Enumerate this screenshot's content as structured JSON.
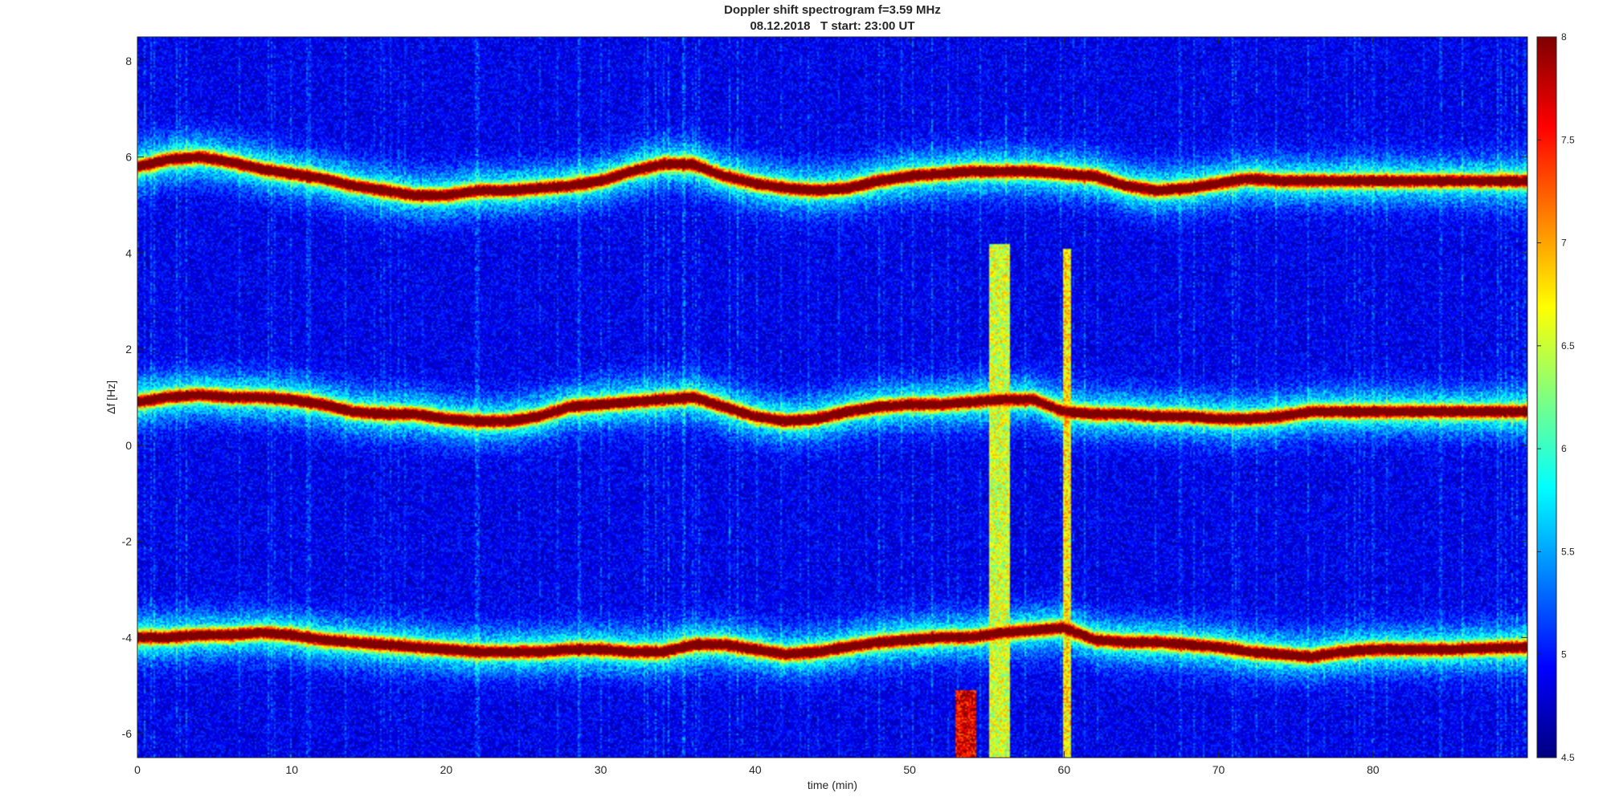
{
  "chart_data": {
    "type": "heatmap",
    "title": "Doppler shift spectrogram f=3.59 MHz",
    "subtitle": "08.12.2018   T start: 23:00 UT",
    "xlabel": "time (min)",
    "ylabel": "Δf [Hz]",
    "xlim": [
      0,
      90
    ],
    "ylim": [
      -6.5,
      8.5
    ],
    "x_ticks": [
      "0",
      "10",
      "20",
      "30",
      "40",
      "50",
      "60",
      "70",
      "80"
    ],
    "y_ticks": [
      "-6",
      "-4",
      "-2",
      "0",
      "2",
      "4",
      "6",
      "8"
    ],
    "colormap": "jet",
    "colorbar": {
      "range": [
        4.5,
        8
      ],
      "ticks": [
        "4.5",
        "5",
        "5.5",
        "6",
        "6.5",
        "7",
        "7.5",
        "8"
      ]
    },
    "grid": false,
    "background_level": 4.6,
    "traces": [
      {
        "t": [
          0,
          2,
          4,
          6,
          8,
          10,
          12,
          14,
          16,
          18,
          20,
          22,
          24,
          26,
          28,
          30,
          32,
          34,
          36,
          38,
          40,
          42,
          44,
          46,
          48,
          50,
          52,
          54,
          56,
          58,
          60,
          62,
          64,
          66,
          68,
          70,
          72,
          74,
          76,
          78,
          80,
          85,
          90
        ],
        "df": [
          5.8,
          5.95,
          6.0,
          5.9,
          5.75,
          5.65,
          5.55,
          5.4,
          5.3,
          5.2,
          5.2,
          5.3,
          5.3,
          5.35,
          5.4,
          5.5,
          5.7,
          5.85,
          5.85,
          5.6,
          5.45,
          5.35,
          5.3,
          5.35,
          5.5,
          5.6,
          5.65,
          5.7,
          5.7,
          5.7,
          5.65,
          5.6,
          5.4,
          5.3,
          5.35,
          5.45,
          5.55,
          5.5,
          5.5,
          5.5,
          5.5,
          5.5,
          5.5
        ]
      },
      {
        "t": [
          0,
          2,
          4,
          6,
          8,
          10,
          12,
          14,
          16,
          18,
          20,
          22,
          24,
          26,
          28,
          30,
          32,
          34,
          36,
          38,
          40,
          42,
          44,
          46,
          48,
          50,
          52,
          54,
          56,
          58,
          60,
          62,
          64,
          66,
          68,
          70,
          72,
          74,
          76,
          78,
          80,
          85,
          90
        ],
        "df": [
          0.9,
          1.0,
          1.05,
          1.0,
          1.0,
          0.95,
          0.85,
          0.7,
          0.65,
          0.65,
          0.55,
          0.5,
          0.5,
          0.6,
          0.8,
          0.85,
          0.9,
          0.95,
          1.0,
          0.8,
          0.6,
          0.5,
          0.55,
          0.7,
          0.8,
          0.85,
          0.85,
          0.9,
          0.95,
          0.95,
          0.7,
          0.65,
          0.65,
          0.6,
          0.6,
          0.55,
          0.55,
          0.6,
          0.7,
          0.7,
          0.7,
          0.7,
          0.7
        ]
      },
      {
        "t": [
          0,
          2,
          4,
          6,
          8,
          10,
          12,
          14,
          16,
          18,
          20,
          22,
          24,
          26,
          28,
          30,
          32,
          34,
          36,
          38,
          40,
          42,
          44,
          46,
          48,
          50,
          52,
          54,
          56,
          58,
          60,
          62,
          64,
          66,
          68,
          70,
          72,
          74,
          76,
          78,
          80,
          85,
          90
        ],
        "df": [
          -4.0,
          -4.0,
          -3.95,
          -3.95,
          -3.9,
          -3.95,
          -4.05,
          -4.1,
          -4.15,
          -4.2,
          -4.25,
          -4.3,
          -4.3,
          -4.3,
          -4.25,
          -4.25,
          -4.3,
          -4.3,
          -4.15,
          -4.15,
          -4.25,
          -4.35,
          -4.3,
          -4.2,
          -4.1,
          -4.05,
          -4.0,
          -4.0,
          -3.9,
          -3.85,
          -3.8,
          -4.05,
          -4.1,
          -4.1,
          -4.15,
          -4.2,
          -4.3,
          -4.35,
          -4.4,
          -4.3,
          -4.25,
          -4.25,
          -4.2
        ]
      }
    ],
    "bursts": [
      {
        "t_start": 53.0,
        "t_end": 54.3,
        "df_min": -6.5,
        "df_max": -5.1,
        "level": 7.8
      },
      {
        "t_start": 55.1,
        "t_end": 56.5,
        "df_min": -6.5,
        "df_max": 4.2,
        "level": 6.7
      },
      {
        "t_start": 59.9,
        "t_end": 60.5,
        "df_min": -6.5,
        "df_max": 4.1,
        "level": 6.9
      }
    ]
  }
}
